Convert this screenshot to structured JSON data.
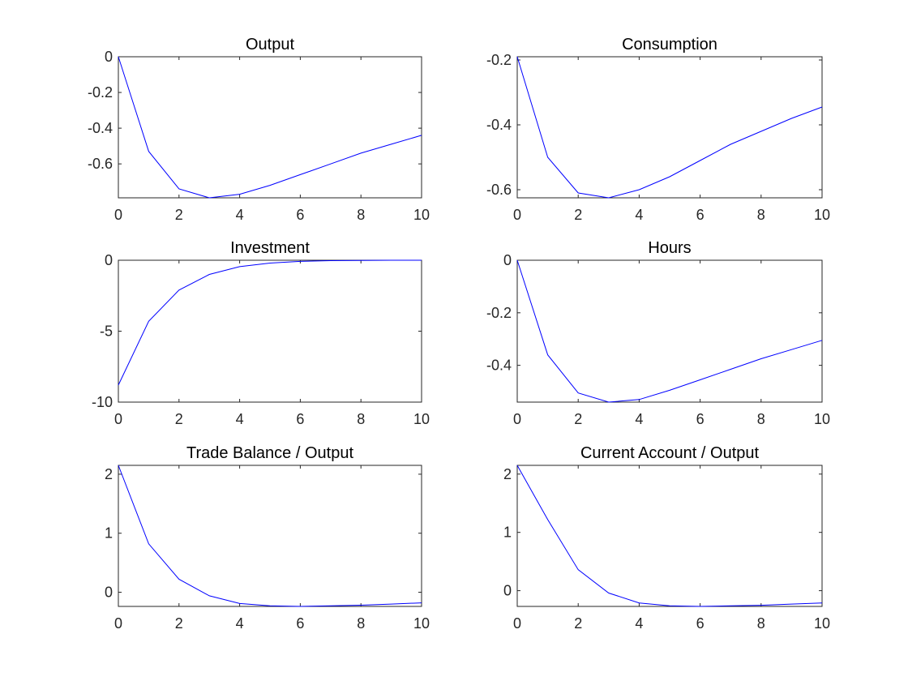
{
  "chart_data": [
    {
      "type": "line",
      "title": "Output",
      "x": [
        0,
        1,
        2,
        3,
        4,
        5,
        6,
        7,
        8,
        9,
        10
      ],
      "series": [
        {
          "values": [
            0,
            -0.53,
            -0.74,
            -0.79,
            -0.77,
            -0.72,
            -0.66,
            -0.6,
            -0.54,
            -0.49,
            -0.44
          ],
          "color": "#0000ff"
        }
      ],
      "xlim": [
        0,
        10
      ],
      "ylim": [
        -0.79,
        0
      ],
      "xticks": [
        0,
        2,
        4,
        6,
        8,
        10
      ],
      "yticks": [
        -0.6,
        -0.4,
        -0.2,
        0
      ],
      "xtick_labels": [
        "0",
        "2",
        "4",
        "6",
        "8",
        "10"
      ],
      "ytick_labels": [
        "-0.6",
        "-0.4",
        "-0.2",
        "0"
      ],
      "grid": false
    },
    {
      "type": "line",
      "title": "Consumption",
      "x": [
        0,
        1,
        2,
        3,
        4,
        5,
        6,
        7,
        8,
        9,
        10
      ],
      "series": [
        {
          "values": [
            -0.19,
            -0.5,
            -0.61,
            -0.625,
            -0.6,
            -0.56,
            -0.51,
            -0.46,
            -0.42,
            -0.38,
            -0.345
          ],
          "color": "#0000ff"
        }
      ],
      "xlim": [
        0,
        10
      ],
      "ylim": [
        -0.625,
        -0.19
      ],
      "xticks": [
        0,
        2,
        4,
        6,
        8,
        10
      ],
      "yticks": [
        -0.6,
        -0.4,
        -0.2
      ],
      "xtick_labels": [
        "0",
        "2",
        "4",
        "6",
        "8",
        "10"
      ],
      "ytick_labels": [
        "-0.6",
        "-0.4",
        "-0.2"
      ],
      "grid": false
    },
    {
      "type": "line",
      "title": "Investment",
      "x": [
        0,
        1,
        2,
        3,
        4,
        5,
        6,
        7,
        8,
        9,
        10
      ],
      "series": [
        {
          "values": [
            -8.8,
            -4.3,
            -2.1,
            -1.0,
            -0.45,
            -0.2,
            -0.08,
            -0.03,
            -0.01,
            0,
            0
          ],
          "color": "#0000ff"
        }
      ],
      "xlim": [
        0,
        10
      ],
      "ylim": [
        -10,
        0
      ],
      "xticks": [
        0,
        2,
        4,
        6,
        8,
        10
      ],
      "yticks": [
        -10,
        -5,
        0
      ],
      "xtick_labels": [
        "0",
        "2",
        "4",
        "6",
        "8",
        "10"
      ],
      "ytick_labels": [
        "-10",
        "-5",
        "0"
      ],
      "grid": false
    },
    {
      "type": "line",
      "title": "Hours",
      "x": [
        0,
        1,
        2,
        3,
        4,
        5,
        6,
        7,
        8,
        9,
        10
      ],
      "series": [
        {
          "values": [
            0,
            -0.36,
            -0.505,
            -0.54,
            -0.53,
            -0.495,
            -0.455,
            -0.415,
            -0.375,
            -0.34,
            -0.305
          ],
          "color": "#0000ff"
        }
      ],
      "xlim": [
        0,
        10
      ],
      "ylim": [
        -0.54,
        0
      ],
      "xticks": [
        0,
        2,
        4,
        6,
        8,
        10
      ],
      "yticks": [
        -0.4,
        -0.2,
        0
      ],
      "xtick_labels": [
        "0",
        "2",
        "4",
        "6",
        "8",
        "10"
      ],
      "ytick_labels": [
        "-0.4",
        "-0.2",
        "0"
      ],
      "grid": false
    },
    {
      "type": "line",
      "title": "Trade Balance / Output",
      "x": [
        0,
        1,
        2,
        3,
        4,
        5,
        6,
        7,
        8,
        9,
        10
      ],
      "series": [
        {
          "values": [
            2.15,
            0.82,
            0.22,
            -0.06,
            -0.19,
            -0.23,
            -0.24,
            -0.23,
            -0.22,
            -0.2,
            -0.18
          ],
          "color": "#0000ff"
        }
      ],
      "xlim": [
        0,
        10
      ],
      "ylim": [
        -0.24,
        2.15
      ],
      "xticks": [
        0,
        2,
        4,
        6,
        8,
        10
      ],
      "yticks": [
        0,
        1,
        2
      ],
      "xtick_labels": [
        "0",
        "2",
        "4",
        "6",
        "8",
        "10"
      ],
      "ytick_labels": [
        "0",
        "1",
        "2"
      ],
      "grid": false
    },
    {
      "type": "line",
      "title": "Current Account / Output",
      "x": [
        0,
        1,
        2,
        3,
        4,
        5,
        6,
        7,
        8,
        9,
        10
      ],
      "series": [
        {
          "values": [
            2.15,
            1.22,
            0.36,
            -0.04,
            -0.21,
            -0.26,
            -0.27,
            -0.26,
            -0.25,
            -0.23,
            -0.21
          ],
          "color": "#0000ff"
        }
      ],
      "xlim": [
        0,
        10
      ],
      "ylim": [
        -0.27,
        2.15
      ],
      "xticks": [
        0,
        2,
        4,
        6,
        8,
        10
      ],
      "yticks": [
        0,
        1,
        2
      ],
      "xtick_labels": [
        "0",
        "2",
        "4",
        "6",
        "8",
        "10"
      ],
      "ytick_labels": [
        "0",
        "1",
        "2"
      ],
      "grid": false
    }
  ]
}
